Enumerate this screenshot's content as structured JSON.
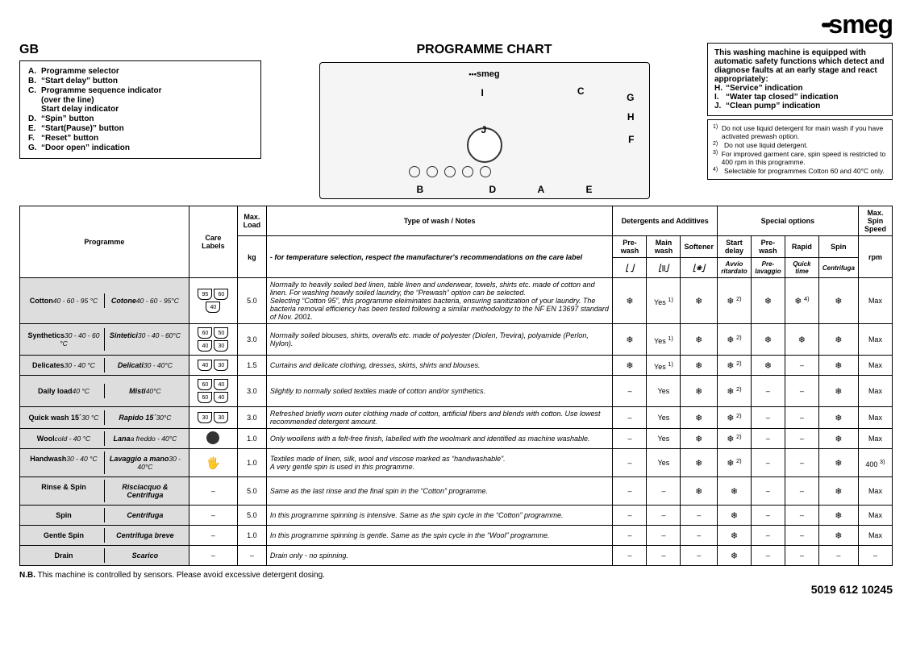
{
  "brand": "smeg",
  "gb": "GB",
  "title": "PROGRAMME CHART",
  "legend": [
    {
      "l": "A.",
      "t": "Programme selector"
    },
    {
      "l": "B.",
      "t": "“Start delay” button"
    },
    {
      "l": "C.",
      "t": "Programme sequence indicator",
      "s1": "(over the line)",
      "s2": "Start delay indicator"
    },
    {
      "l": "D.",
      "t": "“Spin” button"
    },
    {
      "l": "E.",
      "t": "“Start(Pause)” button"
    },
    {
      "l": "F.",
      "t": "“Reset” button"
    },
    {
      "l": "G.",
      "t": "“Door open” indication"
    }
  ],
  "equip_intro": "This washing machine is equipped with automatic safety functions which detect and diagnose faults at an early stage and react appropriately:",
  "equip_items": [
    {
      "l": "H.",
      "t": "“Service” indication"
    },
    {
      "l": "I.",
      "t": "“Water tap closed” indication"
    },
    {
      "l": "J.",
      "t": "“Clean pump” indication"
    }
  ],
  "footnotes": [
    {
      "n": "1)",
      "t": "Do not use liquid detergent for main wash if you have activated prewash option."
    },
    {
      "n": "2)",
      "t": "Do not use liquid detergent."
    },
    {
      "n": "3)",
      "t": "For improved garment care, spin speed is restricted to 400 rpm in this programme."
    },
    {
      "n": "4)",
      "t": "Selectable for programmes Cotton 60 and 40°C only."
    }
  ],
  "table": {
    "headers": {
      "programme": "Programme",
      "care": "Care Labels",
      "maxload": "Max. Load",
      "kg": "kg",
      "notes_top": "Type of wash / Notes",
      "notes_sub": "- for temperature selection, respect the manufacturer's recommendations on the care label",
      "det_group": "Detergents and Additives",
      "opt_group": "Special options",
      "rpm": "Max. Spin Speed",
      "rpm_sub": "rpm",
      "prewash": "Pre-wash",
      "mainwash": "Main wash",
      "softener": "Softener",
      "startdelay": "Start delay",
      "startdelay_it": "Avvio ritardato",
      "prewash2": "Pre-wash",
      "prewash2_it": "Pre-lavaggio",
      "rapid": "Rapid",
      "rapid_it": "Quick time",
      "spin": "Spin",
      "spin_it": "Centrifuga"
    },
    "rows": [
      {
        "shade": true,
        "name_en": "Cotton",
        "temp_en": "40 - 60 - 95 °C",
        "name_it": "Cotone",
        "temp_it": "40 - 60 - 95°C",
        "care": [
          "95",
          "60",
          "40"
        ],
        "load": "5.0",
        "notes": "Normally to heavily soiled bed linen, table linen and underwear, towels, shirts etc. made of cotton and linen. <i>For washing heavily soiled laundry, the “Prewash” option can be selected.</i><br><i>Selecting “Cotton 95”, this programme eleiminates bacteria, ensuring sanitization of your laundry. The bacteria removal efficiency has been tested following a similar methodology to the NF EN 13697 standard of Nov. 2001.</i>",
        "cells": [
          "❄",
          "Yes <sup>1)</sup>",
          "❄",
          "❄ <sup>2)</sup>",
          "❄",
          "❄ <sup>4)</sup>",
          "❄",
          "Max"
        ]
      },
      {
        "shade": true,
        "name_en": "Synthetics",
        "temp_en": "30 - 40 - 60 °C",
        "name_it": "Sintetici",
        "temp_it": "30 - 40 - 60°C",
        "care": [
          "60",
          "50",
          "40",
          "30"
        ],
        "load": "3.0",
        "notes": "Normally soiled blouses, shirts, overalls etc. made of polyester (Diolen, Trevira), polyamide (Perlon, Nylon).",
        "cells": [
          "❄",
          "Yes <sup>1)</sup>",
          "❄",
          "❄ <sup>2)</sup>",
          "❄",
          "❄",
          "❄",
          "Max"
        ]
      },
      {
        "shade": true,
        "name_en": "Delicates",
        "temp_en": "30 - 40 °C",
        "name_it": "Delicati",
        "temp_it": "30 - 40°C",
        "care": [
          "40",
          "30"
        ],
        "load": "1.5",
        "notes": "Curtains and delicate clothing, dresses, skirts, shirts and blouses.",
        "cells": [
          "❄",
          "Yes <sup>1)</sup>",
          "❄",
          "❄ <sup>2)</sup>",
          "❄",
          "–",
          "❄",
          "Max"
        ]
      },
      {
        "shade": true,
        "name_en": "Daily load",
        "temp_en": "40 °C",
        "name_it": "Misti",
        "temp_it": "40°C",
        "care": [
          "60",
          "40",
          "60",
          "40"
        ],
        "load": "3.0",
        "notes": "Slightly to normally soiled textiles made of cotton and/or synthetics.",
        "cells": [
          "–",
          "Yes",
          "❄",
          "❄ <sup>2)</sup>",
          "–",
          "–",
          "❄",
          "Max"
        ]
      },
      {
        "shade": true,
        "name_en": "Quick wash 15´",
        "temp_en": "30 °C",
        "name_it": "Rapido 15´",
        "temp_it": "30°C",
        "care": [
          "30",
          "30"
        ],
        "load": "3.0",
        "notes": "Refreshed briefly worn outer clothing made of cotton, artificial fibers and blends with cotton. Use lowest recommended detergent amount.",
        "cells": [
          "–",
          "Yes",
          "❄",
          "❄ <sup>2)</sup>",
          "–",
          "–",
          "❄",
          "Max"
        ]
      },
      {
        "shade": true,
        "name_en": "Wool",
        "temp_en": "cold - 40 °C",
        "name_it": "Lana",
        "temp_it": "a freddo - 40°C",
        "care_special": "wool",
        "load": "1.0",
        "notes": "Only woollens with a felt-free finish, labelled with the woolmark and identified as machine washable.",
        "cells": [
          "–",
          "Yes",
          "❄",
          "❄ <sup>2)</sup>",
          "–",
          "–",
          "❄",
          "Max"
        ]
      },
      {
        "shade": true,
        "name_en": "Handwash",
        "temp_en": "30 - 40 °C",
        "name_it": "Lavaggio a mano",
        "temp_it": "30 - 40°C",
        "care_special": "hand",
        "load": "1.0",
        "notes": "Textiles made of linen, silk, wool and viscose marked as “handwashable”.<br><i>A very gentle spin is used in this programme.</i>",
        "cells": [
          "–",
          "Yes",
          "❄",
          "❄ <sup>2)</sup>",
          "–",
          "–",
          "❄",
          "400 <sup>3)</sup>"
        ]
      },
      {
        "shade": true,
        "name_en": "Rinse & Spin",
        "temp_en": "",
        "name_it": "Risciacquo & Centrifuga",
        "temp_it": "",
        "care": "–",
        "load": "5.0",
        "notes": "<i>Same as the last rinse and the final spin in the “Cotton” programme.</i>",
        "cells": [
          "–",
          "–",
          "❄",
          "❄",
          "–",
          "–",
          "❄",
          "Max"
        ]
      },
      {
        "shade": true,
        "name_en": "Spin",
        "temp_en": "",
        "name_it": "Centrifuga",
        "temp_it": "",
        "care": "–",
        "load": "5.0",
        "notes": "<i>In this programme spinning is intensive. Same as the spin cycle in the “Cotton” programme.</i>",
        "cells": [
          "–",
          "–",
          "–",
          "❄",
          "–",
          "–",
          "❄",
          "Max"
        ]
      },
      {
        "shade": true,
        "name_en": "Gentle Spin",
        "temp_en": "",
        "name_it": "Centrifuga breve",
        "temp_it": "",
        "care": "–",
        "load": "1.0",
        "notes": "<i>In this programme spinning is gentle. Same as the spin cycle in the “Wool” programme.</i>",
        "cells": [
          "–",
          "–",
          "–",
          "❄",
          "–",
          "–",
          "❄",
          "Max"
        ]
      },
      {
        "shade": true,
        "name_en": "Drain",
        "temp_en": "",
        "name_it": "Scarico",
        "temp_it": "",
        "care": "–",
        "load": "–",
        "notes": "<i>Drain only - no spinning.</i>",
        "cells": [
          "–",
          "–",
          "–",
          "❄",
          "–",
          "–",
          "–",
          "–"
        ]
      }
    ]
  },
  "nb_label": "N.B.",
  "nb_text": "This machine is controlled by sensors. Please avoid excessive detergent dosing.",
  "code": "5019 612 10245"
}
